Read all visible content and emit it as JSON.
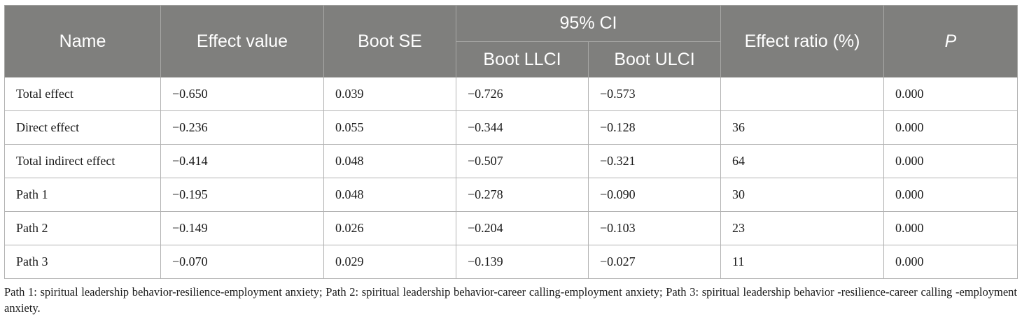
{
  "table": {
    "headers": {
      "name": "Name",
      "effect_value": "Effect value",
      "boot_se": "Boot SE",
      "ci_group": "95% CI",
      "boot_llci": "Boot LLCI",
      "boot_ulci": "Boot ULCI",
      "effect_ratio": "Effect ratio (%)",
      "p": "P"
    },
    "rows": [
      [
        "Total effect",
        "−0.650",
        "0.039",
        "−0.726",
        "−0.573",
        "",
        "0.000"
      ],
      [
        "Direct effect",
        "−0.236",
        "0.055",
        "−0.344",
        "−0.128",
        "36",
        "0.000"
      ],
      [
        "Total indirect effect",
        "−0.414",
        "0.048",
        "−0.507",
        "−0.321",
        "64",
        "0.000"
      ],
      [
        "Path 1",
        "−0.195",
        "0.048",
        "−0.278",
        "−0.090",
        "30",
        "0.000"
      ],
      [
        "Path 2",
        "−0.149",
        "0.026",
        "−0.204",
        "−0.103",
        "23",
        "0.000"
      ],
      [
        "Path 3",
        "−0.070",
        "0.029",
        "−0.139",
        "−0.027",
        "11",
        "0.000"
      ]
    ]
  },
  "footnote": "Path 1: spiritual leadership behavior-resilience-employment anxiety; Path 2: spiritual leadership behavior-career calling-employment anxiety; Path 3: spiritual leadership behavior -resilience-career calling -employment anxiety."
}
